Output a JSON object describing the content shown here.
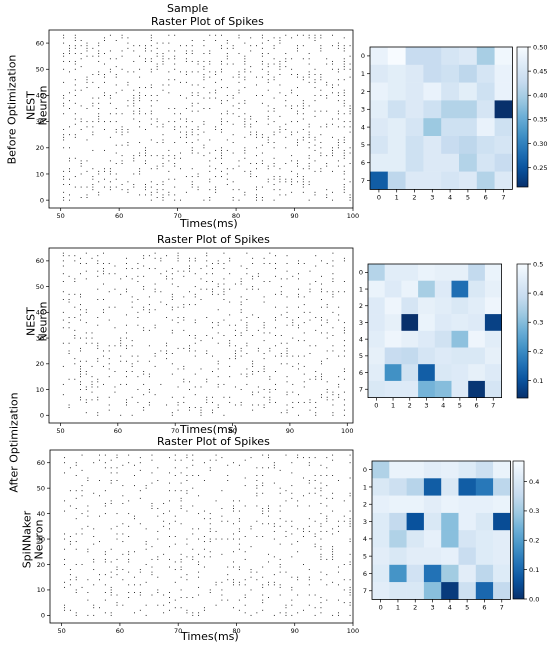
{
  "labels": {
    "sample": "Sample",
    "before": "Before Optimization",
    "after": "After Optimization",
    "neuron": "Neuron"
  },
  "chart_data": [
    {
      "type": "scatter",
      "title": "Raster Plot of Spikes",
      "xlabel": "Times(ms)",
      "ylabel_platform": "NEST",
      "ylabel": "Neuron",
      "xlim": [
        48,
        100
      ],
      "ylim": [
        -3,
        65
      ],
      "xticks": [
        50,
        60,
        70,
        80,
        90,
        100
      ],
      "yticks": [
        0,
        10,
        20,
        30,
        40,
        50,
        60
      ],
      "neurons": 64,
      "time_range": [
        50,
        99
      ],
      "spike_density": 0.32,
      "seed": 11
    },
    {
      "type": "heatmap",
      "rows": 8,
      "cols": 8,
      "xticks": [
        "0",
        "1",
        "2",
        "3",
        "4",
        "5",
        "6",
        "7"
      ],
      "yticks": [
        "0",
        "1",
        "2",
        "3",
        "4",
        "5",
        "6",
        "7"
      ],
      "colorbar_ticks": [
        0.25,
        0.3,
        0.35,
        0.4,
        0.45,
        0.5
      ],
      "colorbar_tick_labels": [
        "0.25",
        "0.30",
        "0.35",
        "0.40",
        "0.45",
        "0.50"
      ],
      "vmin": 0.21,
      "vmax": 0.5,
      "values": [
        [
          0.48,
          0.5,
          0.43,
          0.43,
          0.45,
          0.46,
          0.4,
          0.49
        ],
        [
          0.46,
          0.47,
          0.46,
          0.43,
          0.44,
          0.42,
          0.45,
          0.48
        ],
        [
          0.48,
          0.47,
          0.46,
          0.48,
          0.45,
          0.47,
          0.44,
          0.48
        ],
        [
          0.47,
          0.44,
          0.46,
          0.44,
          0.41,
          0.41,
          0.45,
          0.21
        ],
        [
          0.46,
          0.47,
          0.45,
          0.39,
          0.44,
          0.44,
          0.48,
          0.44
        ],
        [
          0.45,
          0.47,
          0.44,
          0.46,
          0.43,
          0.42,
          0.44,
          0.45
        ],
        [
          0.47,
          0.47,
          0.44,
          0.46,
          0.46,
          0.41,
          0.45,
          0.43
        ],
        [
          0.26,
          0.42,
          0.46,
          0.46,
          0.45,
          0.46,
          0.41,
          0.46
        ]
      ]
    },
    {
      "type": "scatter",
      "title": "Raster Plot of Spikes",
      "xlabel": "Times(ms)",
      "ylabel_platform": "NEST",
      "ylabel": "Neuron",
      "xlim": [
        48,
        101
      ],
      "ylim": [
        -3,
        65
      ],
      "xticks": [
        50,
        60,
        70,
        80,
        90,
        100
      ],
      "yticks": [
        0,
        10,
        20,
        30,
        40,
        50,
        60
      ],
      "neurons": 64,
      "time_range": [
        50,
        99
      ],
      "spike_density": 0.22,
      "seed": 23
    },
    {
      "type": "heatmap",
      "rows": 8,
      "cols": 8,
      "xticks": [
        "0",
        "1",
        "2",
        "3",
        "4",
        "5",
        "6",
        "7"
      ],
      "yticks": [
        "0",
        "1",
        "2",
        "3",
        "4",
        "5",
        "6",
        "7"
      ],
      "colorbar_ticks": [
        0.1,
        0.2,
        0.3,
        0.4,
        0.5
      ],
      "colorbar_tick_labels": [
        "0.1",
        "0.2",
        "0.3",
        "0.4",
        "0.5"
      ],
      "vmin": 0.04,
      "vmax": 0.5,
      "values": [
        [
          0.36,
          0.45,
          0.45,
          0.47,
          0.46,
          0.46,
          0.38,
          0.47
        ],
        [
          0.47,
          0.44,
          0.47,
          0.34,
          0.44,
          0.15,
          0.43,
          0.46
        ],
        [
          0.44,
          0.48,
          0.42,
          0.46,
          0.45,
          0.43,
          0.45,
          0.48
        ],
        [
          0.44,
          0.46,
          0.04,
          0.47,
          0.44,
          0.45,
          0.44,
          0.07
        ],
        [
          0.45,
          0.48,
          0.46,
          0.44,
          0.41,
          0.31,
          0.48,
          0.45
        ],
        [
          0.46,
          0.39,
          0.38,
          0.42,
          0.44,
          0.43,
          0.43,
          0.46
        ],
        [
          0.45,
          0.21,
          0.41,
          0.12,
          0.43,
          0.44,
          0.46,
          0.44
        ],
        [
          0.43,
          0.44,
          0.44,
          0.28,
          0.3,
          0.44,
          0.05,
          0.42
        ]
      ]
    },
    {
      "type": "scatter",
      "title": "Raster Plot of Spikes",
      "xlabel": "Times(ms)",
      "ylabel_platform": "SpiNNaker",
      "ylabel": "Neuron",
      "xlim": [
        48,
        100
      ],
      "ylim": [
        -3,
        65
      ],
      "xticks": [
        50,
        60,
        70,
        80,
        90,
        100
      ],
      "yticks": [
        0,
        10,
        20,
        30,
        40,
        50,
        60
      ],
      "neurons": 64,
      "time_range": [
        50,
        99
      ],
      "spike_density": 0.2,
      "seed": 37
    },
    {
      "type": "heatmap",
      "rows": 8,
      "cols": 8,
      "xticks": [
        "0",
        "1",
        "2",
        "3",
        "4",
        "5",
        "6",
        "7"
      ],
      "yticks": [
        "0",
        "1",
        "2",
        "3",
        "4",
        "5",
        "6",
        "7"
      ],
      "colorbar_ticks": [
        0.0,
        0.1,
        0.2,
        0.3,
        0.4
      ],
      "colorbar_tick_labels": [
        "0.0",
        "0.1",
        "0.2",
        "0.3",
        "0.4"
      ],
      "vmin": 0.0,
      "vmax": 0.47,
      "values": [
        [
          0.32,
          0.44,
          0.44,
          0.42,
          0.43,
          0.41,
          0.37,
          0.44
        ],
        [
          0.4,
          0.37,
          0.33,
          0.08,
          0.4,
          0.08,
          0.13,
          0.34
        ],
        [
          0.43,
          0.44,
          0.44,
          0.42,
          0.44,
          0.43,
          0.43,
          0.44
        ],
        [
          0.41,
          0.35,
          0.06,
          0.4,
          0.27,
          0.43,
          0.4,
          0.05
        ],
        [
          0.41,
          0.32,
          0.4,
          0.43,
          0.27,
          0.39,
          0.41,
          0.42
        ],
        [
          0.42,
          0.4,
          0.42,
          0.42,
          0.43,
          0.36,
          0.41,
          0.42
        ],
        [
          0.41,
          0.18,
          0.38,
          0.12,
          0.3,
          0.42,
          0.34,
          0.41
        ],
        [
          0.42,
          0.4,
          0.4,
          0.27,
          0.02,
          0.37,
          0.1,
          0.35
        ]
      ]
    }
  ]
}
